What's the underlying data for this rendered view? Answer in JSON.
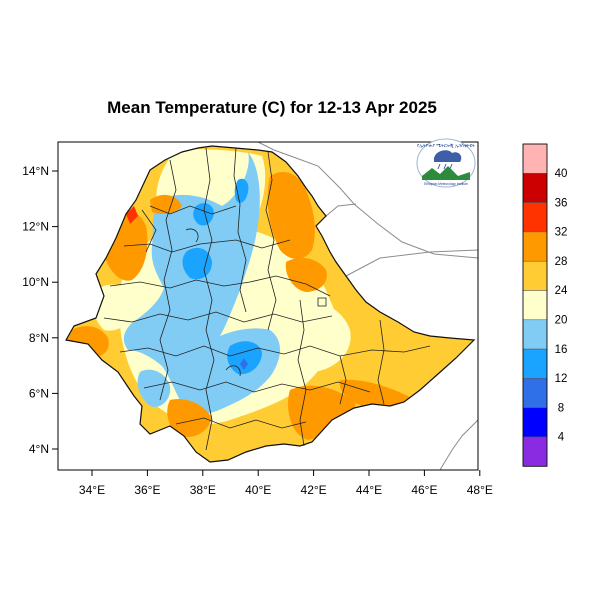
{
  "title": "Mean Temperature (C) for 12-13 Apr 2025",
  "x_ticks": [
    "34°E",
    "36°E",
    "38°E",
    "40°E",
    "42°E",
    "44°E",
    "46°E",
    "48°E"
  ],
  "y_ticks": [
    "14°N",
    "12°N",
    "10°N",
    "8°N",
    "6°N",
    "4°N"
  ],
  "colorbar": {
    "labels": [
      "40",
      "36",
      "32",
      "28",
      "24",
      "20",
      "16",
      "12",
      "8",
      "4"
    ],
    "colors": [
      "#ffb3b3",
      "#cc0000",
      "#ff3300",
      "#ff9900",
      "#ffcc33",
      "#ffffcc",
      "#80ccf5",
      "#1aa3ff",
      "#2f6fe8",
      "#0000ff",
      "#8a2be2"
    ]
  },
  "logo": {
    "top_text": "የኢትዮጵያ ሜትሮሎጂ ኢንስቲትዩት",
    "bottom_text": "Ethiopian Meteorology Institute"
  },
  "map": {
    "lon_range": [
      33,
      48.2
    ],
    "lat_range": [
      3.2,
      15
    ]
  }
}
